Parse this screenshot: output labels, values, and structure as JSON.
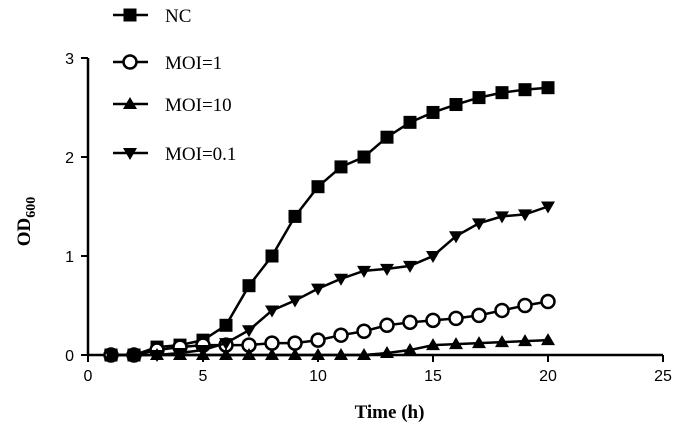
{
  "chart_data": {
    "type": "line",
    "xlabel": "Time (h)",
    "ylabel_main": "OD",
    "ylabel_sub": "600",
    "xlim": [
      0,
      25
    ],
    "ylim": [
      0,
      3
    ],
    "xticks": [
      0,
      5,
      10,
      15,
      20,
      25
    ],
    "yticks": [
      0,
      1,
      2,
      3
    ],
    "grid": false,
    "legend_position": "top-left",
    "x": [
      1,
      2,
      3,
      4,
      5,
      6,
      7,
      8,
      9,
      10,
      11,
      12,
      13,
      14,
      15,
      16,
      17,
      18,
      19,
      20
    ],
    "series": [
      {
        "name": "NC",
        "marker": "square",
        "values": [
          0.0,
          0.0,
          0.08,
          0.1,
          0.15,
          0.3,
          0.7,
          1.0,
          1.4,
          1.7,
          1.9,
          2.0,
          2.2,
          2.35,
          2.45,
          2.53,
          2.6,
          2.65,
          2.68,
          2.7
        ]
      },
      {
        "name": "MOI=1",
        "marker": "circle-open",
        "values": [
          0.0,
          0.0,
          0.05,
          0.08,
          0.1,
          0.1,
          0.1,
          0.12,
          0.12,
          0.15,
          0.2,
          0.24,
          0.3,
          0.33,
          0.35,
          0.37,
          0.4,
          0.45,
          0.5,
          0.54
        ]
      },
      {
        "name": "MOI=10",
        "marker": "triangle-up",
        "values": [
          0.0,
          0.0,
          0.0,
          0.0,
          0.0,
          0.0,
          0.0,
          0.0,
          0.0,
          0.0,
          0.0,
          0.0,
          0.02,
          0.05,
          0.1,
          0.11,
          0.12,
          0.13,
          0.14,
          0.15
        ]
      },
      {
        "name": "MOI=0.1",
        "marker": "triangle-down",
        "values": [
          0.0,
          0.0,
          0.0,
          0.02,
          0.05,
          0.12,
          0.25,
          0.45,
          0.55,
          0.67,
          0.77,
          0.85,
          0.87,
          0.9,
          1.0,
          1.2,
          1.33,
          1.4,
          1.42,
          1.5
        ]
      }
    ]
  }
}
